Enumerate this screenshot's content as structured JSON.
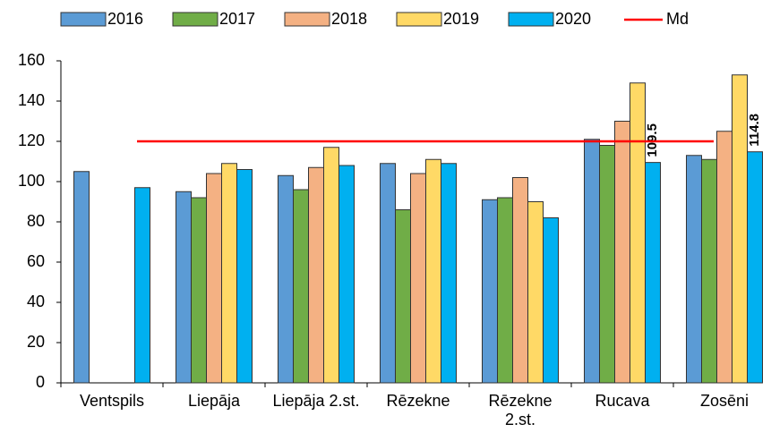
{
  "chart_data": {
    "type": "bar",
    "categories": [
      "Ventspils",
      "Liepāja",
      "Liepāja 2.st.",
      "Rēzekne",
      "Rēzekne 2.st.",
      "Rucava",
      "Zosēni"
    ],
    "series": [
      {
        "name": "2016",
        "color": "#5b9bd5",
        "values": [
          105,
          95,
          103,
          109,
          91,
          121,
          113
        ]
      },
      {
        "name": "2017",
        "color": "#70ad47",
        "values": [
          null,
          92,
          96,
          86,
          92,
          118,
          111
        ]
      },
      {
        "name": "2018",
        "color": "#f4b183",
        "values": [
          null,
          104,
          107,
          104,
          102,
          130,
          125
        ]
      },
      {
        "name": "2019",
        "color": "#ffd966",
        "values": [
          null,
          109,
          117,
          111,
          90,
          149,
          153
        ]
      },
      {
        "name": "2020",
        "color": "#00b0f0",
        "values": [
          97,
          106,
          108,
          109,
          82,
          109.5,
          114.8
        ],
        "value_labels": [
          null,
          null,
          null,
          null,
          null,
          "109.5",
          "114.8"
        ]
      }
    ],
    "reference_line": {
      "name": "Md",
      "value": 120,
      "color": "#ff0000"
    },
    "ylim": [
      0,
      160
    ],
    "yticks": [
      0,
      20,
      40,
      60,
      80,
      100,
      120,
      140,
      160
    ],
    "grid": false
  }
}
